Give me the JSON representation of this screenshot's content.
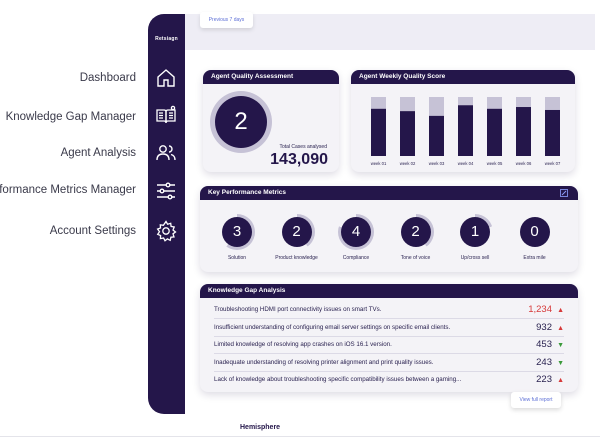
{
  "annotations": [
    "Dashboard",
    "Knowledge Gap Manager",
    "Agent Analysis",
    "Performance Metrics Manager",
    "Account Settings"
  ],
  "sidebar": {
    "brand": "Retsiagn",
    "icons": [
      "home-icon",
      "book-icon",
      "users-icon",
      "sliders-icon",
      "gear-icon"
    ]
  },
  "header": {
    "period": "Previous 7 days"
  },
  "quality": {
    "title": "Agent Quality Assessment",
    "score": "2",
    "cases_label": "Total Cases analysed",
    "cases": "143,090"
  },
  "weekly": {
    "title": "Agent Weekly Quality Score"
  },
  "chart_data": {
    "type": "bar",
    "title": "Agent Weekly Quality Score",
    "categories": [
      "week 01",
      "week 02",
      "week 03",
      "week 04",
      "week 05",
      "week 06",
      "week 07"
    ],
    "values": [
      80,
      76,
      68,
      86,
      80,
      83,
      78
    ],
    "ylim": [
      0,
      100
    ],
    "colors": {
      "bar": "#24164a",
      "track": "#c6c2d6"
    }
  },
  "kpi": {
    "title": "Key Performance Metrics",
    "items": [
      {
        "value": "3",
        "label": "Solution",
        "fill": 0.6
      },
      {
        "value": "2",
        "label": "Product knowledge",
        "fill": 0.4
      },
      {
        "value": "4",
        "label": "Compliance",
        "fill": 0.8
      },
      {
        "value": "2",
        "label": "Tone of voice",
        "fill": 0.4
      },
      {
        "value": "1",
        "label": "Up/cross sell",
        "fill": 0.2
      },
      {
        "value": "0",
        "label": "Extra mile",
        "fill": 0
      }
    ]
  },
  "gaps": {
    "title": "Knowledge Gap Analysis",
    "rows": [
      {
        "text": "Troubleshooting HDMI port connectivity issues on smart TVs.",
        "value": "1,234",
        "trend": "up",
        "hot": true
      },
      {
        "text": "Insufficient understanding of configuring email server settings on specific email clients.",
        "value": "932",
        "trend": "up",
        "hot": false
      },
      {
        "text": "Limited knowledge of resolving app crashes on iOS 16.1 version.",
        "value": "453",
        "trend": "down",
        "hot": false
      },
      {
        "text": "Inadequate understanding of resolving printer alignment and print quality issues.",
        "value": "243",
        "trend": "down",
        "hot": false
      },
      {
        "text": "Lack of knowledge about troubleshooting specific compatibility issues between a gaming...",
        "value": "223",
        "trend": "up",
        "hot": false
      }
    ],
    "view_full": "View full report"
  },
  "footer": {
    "logo": "Hemisphere"
  },
  "colors": {
    "primary": "#24164a",
    "accent": "#5d6fd6",
    "up": "#d63a3a",
    "down": "#3a9a3a"
  }
}
